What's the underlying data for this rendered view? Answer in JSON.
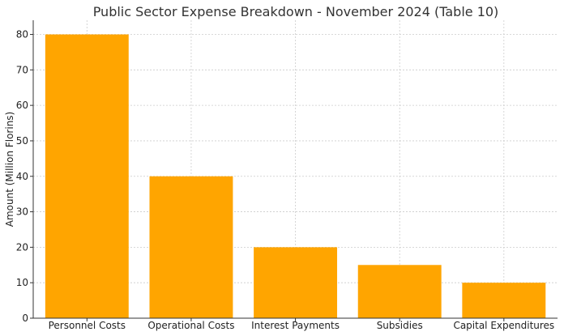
{
  "chart_data": {
    "type": "bar",
    "title": "Public Sector Expense Breakdown - November 2024 (Table 10)",
    "xlabel": "",
    "ylabel": "Amount (Million Florins)",
    "categories": [
      "Personnel Costs",
      "Operational Costs",
      "Interest Payments",
      "Subsidies",
      "Capital Expenditures"
    ],
    "values": [
      80,
      40,
      20,
      15,
      10
    ],
    "ylim": [
      0,
      84
    ],
    "yticks": [
      0,
      10,
      20,
      30,
      40,
      50,
      60,
      70,
      80
    ],
    "grid": true,
    "bar_color": "#FFA500"
  }
}
